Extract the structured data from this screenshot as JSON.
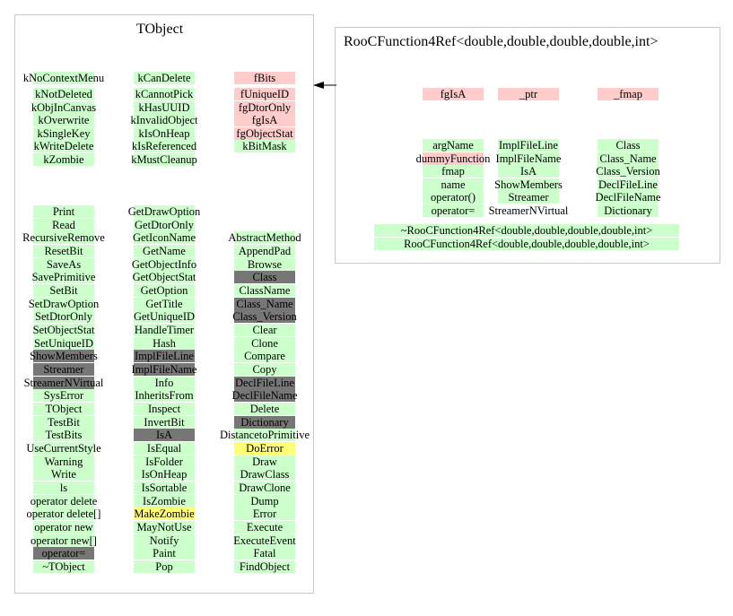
{
  "colors": {
    "public": "#ccffcc",
    "private": "#ffcccc",
    "pure-or-overridden": "#777777",
    "protected": "#ffff77",
    "none": "transparent"
  },
  "tobject": {
    "title": "TObject",
    "top_columns": [
      {
        "header": {
          "label": "kNoContextMenu",
          "kind": "public"
        },
        "items": [
          {
            "label": "kNotDeleted",
            "kind": "public"
          },
          {
            "label": "kObjInCanvas",
            "kind": "public"
          },
          {
            "label": "kOverwrite",
            "kind": "public"
          },
          {
            "label": "kSingleKey",
            "kind": "public"
          },
          {
            "label": "kWriteDelete",
            "kind": "public"
          },
          {
            "label": "kZombie",
            "kind": "public"
          }
        ]
      },
      {
        "header": {
          "label": "kCanDelete",
          "kind": "public"
        },
        "items": [
          {
            "label": "kCannotPick",
            "kind": "public"
          },
          {
            "label": "kHasUUID",
            "kind": "public"
          },
          {
            "label": "kInvalidObject",
            "kind": "public"
          },
          {
            "label": "kIsOnHeap",
            "kind": "public"
          },
          {
            "label": "kIsReferenced",
            "kind": "public"
          },
          {
            "label": "kMustCleanup",
            "kind": "public"
          }
        ]
      },
      {
        "header": {
          "label": "fBits",
          "kind": "private"
        },
        "items": [
          {
            "label": "fUniqueID",
            "kind": "private"
          },
          {
            "label": "fgDtorOnly",
            "kind": "private"
          },
          {
            "label": "fgIsA",
            "kind": "private"
          },
          {
            "label": "fgObjectStat",
            "kind": "private"
          },
          {
            "label": "kBitMask",
            "kind": "public"
          }
        ]
      }
    ],
    "method_columns": [
      {
        "start_row": 0,
        "items": [
          {
            "label": "Print",
            "kind": "public"
          },
          {
            "label": "Read",
            "kind": "public"
          },
          {
            "label": "RecursiveRemove",
            "kind": "public"
          },
          {
            "label": "ResetBit",
            "kind": "public"
          },
          {
            "label": "SaveAs",
            "kind": "public"
          },
          {
            "label": "SavePrimitive",
            "kind": "public"
          },
          {
            "label": "SetBit",
            "kind": "public"
          },
          {
            "label": "SetDrawOption",
            "kind": "public"
          },
          {
            "label": "SetDtorOnly",
            "kind": "public"
          },
          {
            "label": "SetObjectStat",
            "kind": "public"
          },
          {
            "label": "SetUniqueID",
            "kind": "public"
          },
          {
            "label": "ShowMembers",
            "kind": "pure-or-overridden"
          },
          {
            "label": "Streamer",
            "kind": "pure-or-overridden"
          },
          {
            "label": "StreamerNVirtual",
            "kind": "pure-or-overridden"
          },
          {
            "label": "SysError",
            "kind": "public"
          },
          {
            "label": "TObject",
            "kind": "public"
          },
          {
            "label": "TestBit",
            "kind": "public"
          },
          {
            "label": "TestBits",
            "kind": "public"
          },
          {
            "label": "UseCurrentStyle",
            "kind": "public"
          },
          {
            "label": "Warning",
            "kind": "public"
          },
          {
            "label": "Write",
            "kind": "public"
          },
          {
            "label": "ls",
            "kind": "public"
          },
          {
            "label": "operator delete",
            "kind": "public"
          },
          {
            "label": "operator delete[]",
            "kind": "public"
          },
          {
            "label": "operator new",
            "kind": "public"
          },
          {
            "label": "operator new[]",
            "kind": "public"
          },
          {
            "label": "operator=",
            "kind": "pure-or-overridden"
          },
          {
            "label": "~TObject",
            "kind": "public"
          }
        ]
      },
      {
        "start_row": 0,
        "items": [
          {
            "label": "GetDrawOption",
            "kind": "public"
          },
          {
            "label": "GetDtorOnly",
            "kind": "public"
          },
          {
            "label": "GetIconName",
            "kind": "public"
          },
          {
            "label": "GetName",
            "kind": "public"
          },
          {
            "label": "GetObjectInfo",
            "kind": "public"
          },
          {
            "label": "GetObjectStat",
            "kind": "public"
          },
          {
            "label": "GetOption",
            "kind": "public"
          },
          {
            "label": "GetTitle",
            "kind": "public"
          },
          {
            "label": "GetUniqueID",
            "kind": "public"
          },
          {
            "label": "HandleTimer",
            "kind": "public"
          },
          {
            "label": "Hash",
            "kind": "public"
          },
          {
            "label": "ImplFileLine",
            "kind": "pure-or-overridden"
          },
          {
            "label": "ImplFileName",
            "kind": "pure-or-overridden"
          },
          {
            "label": "Info",
            "kind": "public"
          },
          {
            "label": "InheritsFrom",
            "kind": "public"
          },
          {
            "label": "Inspect",
            "kind": "public"
          },
          {
            "label": "InvertBit",
            "kind": "public"
          },
          {
            "label": "IsA",
            "kind": "pure-or-overridden"
          },
          {
            "label": "IsEqual",
            "kind": "public"
          },
          {
            "label": "IsFolder",
            "kind": "public"
          },
          {
            "label": "IsOnHeap",
            "kind": "public"
          },
          {
            "label": "IsSortable",
            "kind": "public"
          },
          {
            "label": "IsZombie",
            "kind": "public"
          },
          {
            "label": "MakeZombie",
            "kind": "protected"
          },
          {
            "label": "MayNotUse",
            "kind": "public"
          },
          {
            "label": "Notify",
            "kind": "public"
          },
          {
            "label": "Paint",
            "kind": "public"
          },
          {
            "label": "Pop",
            "kind": "public"
          }
        ]
      },
      {
        "start_row": 2,
        "items": [
          {
            "label": "AbstractMethod",
            "kind": "public"
          },
          {
            "label": "AppendPad",
            "kind": "public"
          },
          {
            "label": "Browse",
            "kind": "public"
          },
          {
            "label": "Class",
            "kind": "pure-or-overridden"
          },
          {
            "label": "ClassName",
            "kind": "public"
          },
          {
            "label": "Class_Name",
            "kind": "pure-or-overridden"
          },
          {
            "label": "Class_Version",
            "kind": "pure-or-overridden"
          },
          {
            "label": "Clear",
            "kind": "public"
          },
          {
            "label": "Clone",
            "kind": "public"
          },
          {
            "label": "Compare",
            "kind": "public"
          },
          {
            "label": "Copy",
            "kind": "public"
          },
          {
            "label": "DeclFileLine",
            "kind": "pure-or-overridden"
          },
          {
            "label": "DeclFileName",
            "kind": "pure-or-overridden"
          },
          {
            "label": "Delete",
            "kind": "public"
          },
          {
            "label": "Dictionary",
            "kind": "pure-or-overridden"
          },
          {
            "label": "DistancetoPrimitive",
            "kind": "public"
          },
          {
            "label": "DoError",
            "kind": "protected"
          },
          {
            "label": "Draw",
            "kind": "public"
          },
          {
            "label": "DrawClass",
            "kind": "public"
          },
          {
            "label": "DrawClone",
            "kind": "public"
          },
          {
            "label": "Dump",
            "kind": "public"
          },
          {
            "label": "Error",
            "kind": "public"
          },
          {
            "label": "Execute",
            "kind": "public"
          },
          {
            "label": "ExecuteEvent",
            "kind": "public"
          },
          {
            "label": "Fatal",
            "kind": "public"
          },
          {
            "label": "FindObject",
            "kind": "public"
          }
        ]
      }
    ]
  },
  "derived": {
    "title": "RooCFunction4Ref<double,double,double,double,int>",
    "top_columns": [
      {
        "header": {
          "label": "fgIsA",
          "kind": "private"
        }
      },
      {
        "header": {
          "label": "_ptr",
          "kind": "private"
        }
      },
      {
        "header": {
          "label": "_fmap",
          "kind": "private"
        }
      }
    ],
    "method_columns": [
      {
        "items": [
          {
            "label": "argName",
            "kind": "public"
          },
          {
            "label": "dummyFunction",
            "kind": "private"
          },
          {
            "label": "fmap",
            "kind": "public"
          },
          {
            "label": "name",
            "kind": "public"
          },
          {
            "label": "operator()",
            "kind": "public"
          },
          {
            "label": "operator=",
            "kind": "public"
          },
          {
            "label": "~RooCFunction4Ref<double,double,double,double,int>",
            "kind": "public"
          }
        ]
      },
      {
        "items": [
          {
            "label": "ImplFileLine",
            "kind": "public"
          },
          {
            "label": "ImplFileName",
            "kind": "public"
          },
          {
            "label": "IsA",
            "kind": "public"
          },
          {
            "label": "RooCFunction4Ref<double,double,double,double,int>",
            "kind": "public"
          },
          {
            "label": "ShowMembers",
            "kind": "public"
          },
          {
            "label": "Streamer",
            "kind": "public"
          },
          {
            "label": "StreamerNVirtual",
            "kind": "none"
          }
        ]
      },
      {
        "items": [
          {
            "label": "Class",
            "kind": "public"
          },
          {
            "label": "Class_Name",
            "kind": "public"
          },
          {
            "label": "Class_Version",
            "kind": "public"
          },
          {
            "label": "DeclFileLine",
            "kind": "public"
          },
          {
            "label": "DeclFileName",
            "kind": "public"
          },
          {
            "label": "Dictionary",
            "kind": "public"
          }
        ]
      }
    ]
  },
  "edge": {
    "from": "RooCFunction4Ref<double,double,double,double,int>",
    "to": "TObject",
    "type": "inheritance"
  }
}
